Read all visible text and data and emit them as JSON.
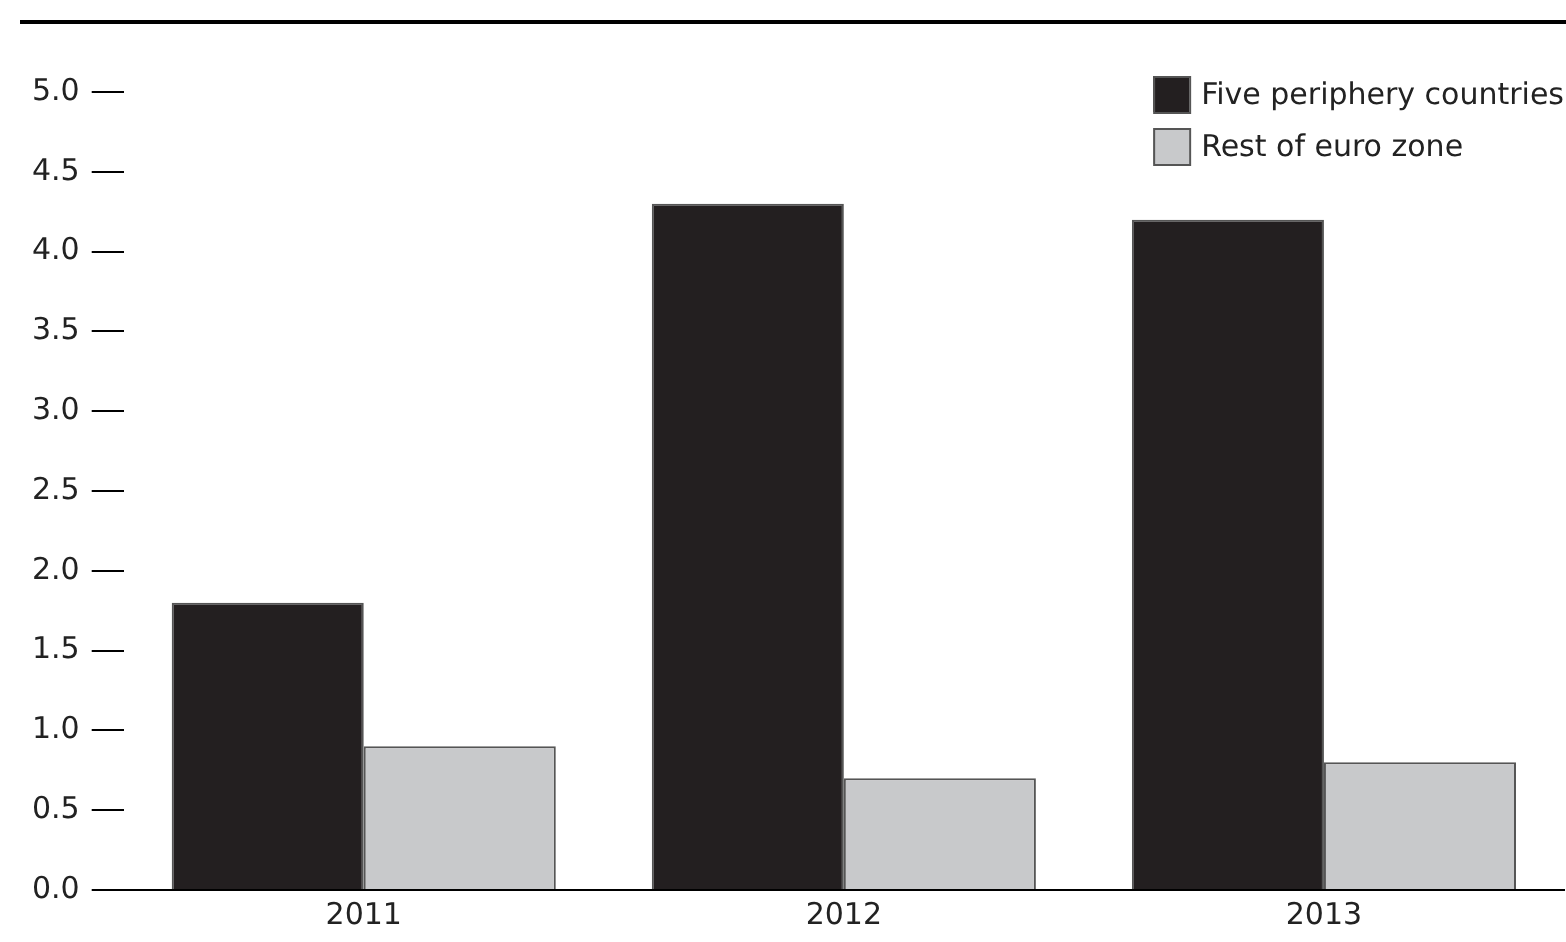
{
  "chart_data": {
    "type": "bar",
    "categories": [
      "2011",
      "2012",
      "2013"
    ],
    "series": [
      {
        "name": "Five periphery countries",
        "color": "#231f20",
        "values": [
          1.8,
          4.3,
          4.2
        ]
      },
      {
        "name": "Rest of euro zone",
        "color": "#c8c9cb",
        "values": [
          0.9,
          0.7,
          0.8
        ]
      }
    ],
    "ylim": [
      0,
      5
    ],
    "yticks": [
      {
        "value": 0,
        "label": "0.0"
      },
      {
        "value": 0.5,
        "label": "0.5"
      },
      {
        "value": 1,
        "label": "1.0"
      },
      {
        "value": 1.5,
        "label": "1.5"
      },
      {
        "value": 2,
        "label": "2.0"
      },
      {
        "value": 2.5,
        "label": "2.5"
      },
      {
        "value": 3,
        "label": "3.0"
      },
      {
        "value": 3.5,
        "label": "3.5"
      },
      {
        "value": 4,
        "label": "4.0"
      },
      {
        "value": 4.5,
        "label": "4.5"
      },
      {
        "value": 5,
        "label": "5.0"
      }
    ],
    "grid": false,
    "legend": "top right"
  }
}
